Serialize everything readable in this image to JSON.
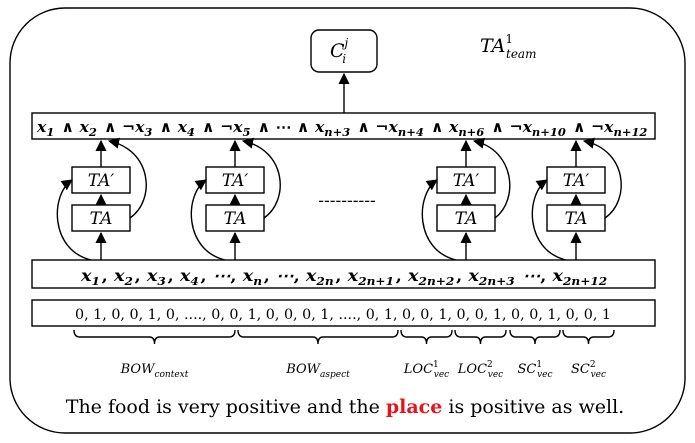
{
  "team_label": {
    "base": "TA",
    "sup": "1",
    "sub": "team"
  },
  "output_node": {
    "base": "C",
    "sup": "j",
    "sub": "i"
  },
  "clause_terms": [
    {
      "neg": false,
      "base": "x",
      "sub": "1"
    },
    {
      "neg": false,
      "base": "x",
      "sub": "2"
    },
    {
      "neg": true,
      "base": "x",
      "sub": "3"
    },
    {
      "neg": false,
      "base": "x",
      "sub": "4"
    },
    {
      "neg": true,
      "base": "x",
      "sub": "5"
    },
    {
      "neg": false,
      "base": "",
      "sub": "",
      "ellipsis": true
    },
    {
      "neg": false,
      "base": "x",
      "sub": "n+3"
    },
    {
      "neg": true,
      "base": "x",
      "sub": "n+4"
    },
    {
      "neg": false,
      "base": "x",
      "sub": "n+6"
    },
    {
      "neg": true,
      "base": "x",
      "sub": "n+10"
    },
    {
      "neg": true,
      "base": "x",
      "sub": "n+12"
    }
  ],
  "ta_prime_label": "TA′",
  "ta_label": "TA",
  "dashes": "----------",
  "feature_terms": [
    {
      "base": "x",
      "sub": "1"
    },
    {
      "base": "x",
      "sub": "2"
    },
    {
      "base": "x",
      "sub": "3"
    },
    {
      "base": "x",
      "sub": "4"
    },
    {
      "base": "⋯",
      "sub": ""
    },
    {
      "base": "x",
      "sub": "n"
    },
    {
      "base": "⋯",
      "sub": ""
    },
    {
      "base": "x",
      "sub": "2n"
    },
    {
      "base": "x",
      "sub": "2n+1"
    },
    {
      "base": "x",
      "sub": "2n+2"
    },
    {
      "base": "x",
      "sub": "2n+3"
    },
    {
      "base": "⋯",
      "sub": ""
    },
    {
      "base": "x",
      "sub": "2n+12"
    }
  ],
  "feature_separators": [
    ", ",
    ", ",
    ", ",
    ", ",
    ", ",
    ", ",
    ", ",
    ", ",
    ", ",
    ", ",
    " ",
    ", "
  ],
  "binary_vector": "0, 1, 0, 0, 1, 0, ...., 0, 0, 1, 0, 0, 0, 1, ...., 0, 1, 0, 0, 1, 0, 0, 1, 0, 0, 1, 0, 0, 1",
  "segments": [
    {
      "base": "BOW",
      "sub": "context",
      "sup": ""
    },
    {
      "base": "BOW",
      "sub": "aspect",
      "sup": ""
    },
    {
      "base": "LOC",
      "sub": "vec",
      "sup": "1"
    },
    {
      "base": "LOC",
      "sub": "vec",
      "sup": "2"
    },
    {
      "base": "SC",
      "sub": "vec",
      "sup": "1"
    },
    {
      "base": "SC",
      "sub": "vec",
      "sup": "2"
    }
  ],
  "sentence": {
    "before": "The food is very positive and the ",
    "highlight": "place",
    "after": " is positive as well."
  },
  "colors": {
    "highlight": "#e8141a",
    "stroke": "#000000"
  }
}
